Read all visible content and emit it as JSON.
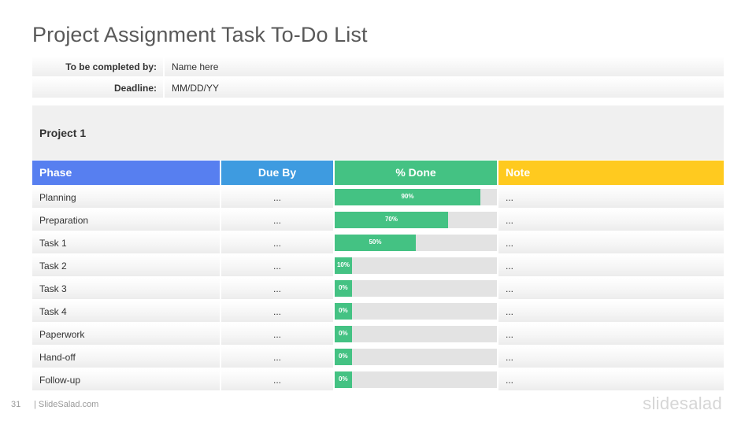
{
  "title": "Project Assignment Task To-Do List",
  "meta": {
    "completed_by_label": "To be completed by:",
    "completed_by_value": "Name here",
    "deadline_label": "Deadline:",
    "deadline_value": "MM/DD/YY"
  },
  "project": {
    "name": "Project 1"
  },
  "columns": {
    "phase": "Phase",
    "due_by": "Due By",
    "done": "% Done",
    "note": "Note"
  },
  "colors": {
    "phase_header": "#577ff0",
    "due_header": "#3e9be0",
    "done_header": "#44c283",
    "note_header": "#ffca1f",
    "progress_fill": "#44c283",
    "progress_track": "#e3e3e3"
  },
  "rows": [
    {
      "phase": "Planning",
      "due": "...",
      "done": 90,
      "done_label": "90%",
      "note": "..."
    },
    {
      "phase": "Preparation",
      "due": "...",
      "done": 70,
      "done_label": "70%",
      "note": "..."
    },
    {
      "phase": "Task 1",
      "due": "...",
      "done": 50,
      "done_label": "50%",
      "note": "..."
    },
    {
      "phase": "Task 2",
      "due": "...",
      "done": 10,
      "done_label": "10%",
      "note": "..."
    },
    {
      "phase": "Task 3",
      "due": "...",
      "done": 0,
      "done_label": "0%",
      "note": "..."
    },
    {
      "phase": "Task 4",
      "due": "...",
      "done": 0,
      "done_label": "0%",
      "note": "..."
    },
    {
      "phase": "Paperwork",
      "due": "...",
      "done": 0,
      "done_label": "0%",
      "note": "..."
    },
    {
      "phase": "Hand-off",
      "due": "...",
      "done": 0,
      "done_label": "0%",
      "note": "..."
    },
    {
      "phase": "Follow-up",
      "due": "...",
      "done": 0,
      "done_label": "0%",
      "note": "..."
    }
  ],
  "footer": {
    "page_number": "31",
    "site": "| SlideSalad.com",
    "brand": "slidesalad"
  }
}
